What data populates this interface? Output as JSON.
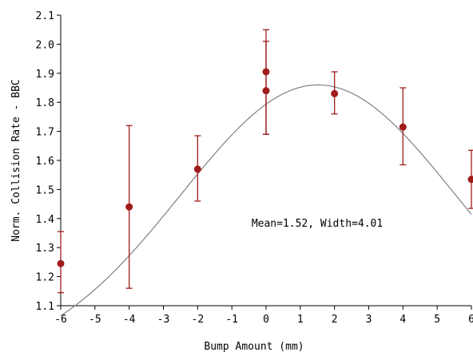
{
  "chart_data": {
    "type": "scatter",
    "title": "",
    "xlabel": "Bump Amount (mm)",
    "ylabel": "Norm. Collision Rate - BBC",
    "xlim": [
      -6,
      6
    ],
    "ylim": [
      1.1,
      2.1
    ],
    "x_ticks": [
      -6,
      -5,
      -4,
      -3,
      -2,
      -1,
      0,
      1,
      2,
      3,
      4,
      5,
      6
    ],
    "x_tick_labels": [
      "-6",
      "-5",
      "-4",
      "-3",
      "-2",
      "-1",
      "0",
      "1",
      "2",
      "3",
      "4",
      "5",
      "6"
    ],
    "y_ticks": [
      1.1,
      1.2,
      1.3,
      1.4,
      1.5,
      1.6,
      1.7,
      1.8,
      1.9,
      2.0,
      2.1
    ],
    "y_tick_labels": [
      "1.1",
      "1.2",
      "1.3",
      "1.4",
      "1.5",
      "1.6",
      "1.7",
      "1.8",
      "1.9",
      "2.0",
      "2.1"
    ],
    "grid": false,
    "series": [
      {
        "x": [
          -6,
          -4,
          -2,
          0,
          0,
          2,
          4,
          6
        ],
        "y": [
          1.245,
          1.44,
          1.57,
          1.905,
          1.84,
          1.83,
          1.715,
          1.535
        ],
        "yerr_low": [
          0.1,
          0.28,
          0.11,
          0.215,
          0.15,
          0.07,
          0.13,
          0.1
        ],
        "yerr_high": [
          0.11,
          0.28,
          0.115,
          0.145,
          0.17,
          0.075,
          0.135,
          0.1
        ],
        "color": "#a01c1c"
      }
    ],
    "fit": {
      "type": "gaussian",
      "mean": 1.52,
      "width": 4.01,
      "amplitude": 1.86,
      "baseline": 0.9,
      "color": "#808080"
    },
    "annotation": "Mean=1.52, Width=4.01"
  }
}
